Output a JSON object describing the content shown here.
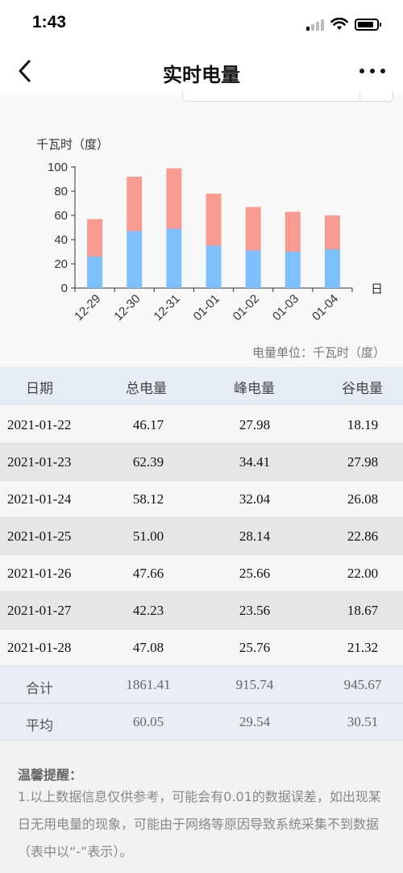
{
  "status_bar": {
    "time": "1:43"
  },
  "nav": {
    "title": "实时电量",
    "back_icon": "chevron-left-icon",
    "more_icon": "more-dots-icon"
  },
  "chart_data": {
    "type": "bar",
    "stacked": true,
    "ylabel": "千瓦时（度）",
    "xlabel": "日",
    "categories": [
      "12-29",
      "12-30",
      "12-31",
      "01-01",
      "01-02",
      "01-03",
      "01-04"
    ],
    "yticks": [
      0,
      20,
      40,
      60,
      80,
      100
    ],
    "ylim": [
      0,
      100
    ],
    "series": [
      {
        "values": [
          26,
          47,
          49,
          35,
          31,
          30,
          32
        ],
        "color": "#7ec0fb"
      },
      {
        "values": [
          31,
          45,
          50,
          43,
          36,
          33,
          28
        ],
        "color": "#f89b90"
      }
    ]
  },
  "unit_note": "电量单位：千瓦时（度）",
  "table": {
    "headers": [
      "日期",
      "总电量",
      "峰电量",
      "谷电量"
    ],
    "rows": [
      {
        "date": "2021-01-22",
        "total": "46.17",
        "peak": "27.98",
        "valley": "18.19"
      },
      {
        "date": "2021-01-23",
        "total": "62.39",
        "peak": "34.41",
        "valley": "27.98"
      },
      {
        "date": "2021-01-24",
        "total": "58.12",
        "peak": "32.04",
        "valley": "26.08"
      },
      {
        "date": "2021-01-25",
        "total": "51.00",
        "peak": "28.14",
        "valley": "22.86"
      },
      {
        "date": "2021-01-26",
        "total": "47.66",
        "peak": "25.66",
        "valley": "22.00"
      },
      {
        "date": "2021-01-27",
        "total": "42.23",
        "peak": "23.56",
        "valley": "18.67"
      },
      {
        "date": "2021-01-28",
        "total": "47.08",
        "peak": "25.76",
        "valley": "21.32"
      }
    ],
    "sum": {
      "label": "合计",
      "total": "1861.41",
      "peak": "915.74",
      "valley": "945.67"
    },
    "avg": {
      "label": "平均",
      "total": "60.05",
      "peak": "29.54",
      "valley": "30.51"
    }
  },
  "tips": {
    "title": "温馨提醒：",
    "body": "1.以上数据信息仅供参考，可能会有0.01的数据误差，如出现某日无用电量的现象，可能由于网络等原因导致系统采集不到数据（表中以“-”表示）。"
  }
}
